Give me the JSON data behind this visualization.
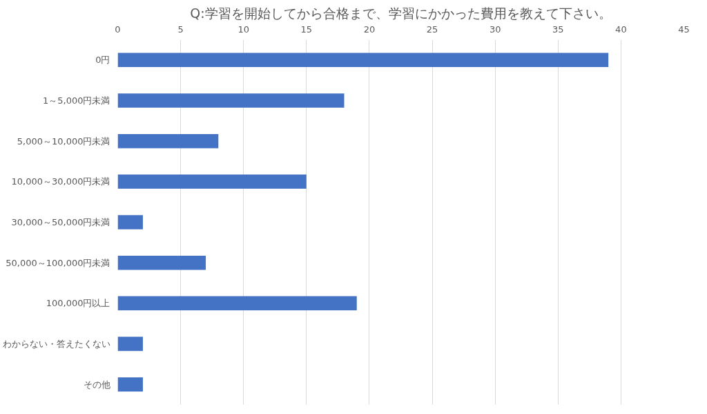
{
  "chart_data": {
    "type": "bar",
    "orientation": "horizontal",
    "title": "Q:学習を開始してから合格まで、学習にかかった費用を教えて下さい。",
    "categories": [
      "0円",
      "1～5,000円未満",
      "5,000～10,000円未満",
      "10,000～30,000円未満",
      "30,000～50,000円未満",
      "50,000～100,000円未満",
      "100,000円以上",
      "わからない・答えたくない",
      "その他"
    ],
    "values": [
      39,
      18,
      8,
      15,
      2,
      7,
      19,
      2,
      2
    ],
    "color": "#4472c4",
    "xlim": [
      0,
      45
    ],
    "xticks": [
      0,
      5,
      10,
      15,
      20,
      25,
      30,
      35,
      40,
      45
    ],
    "grid": "x"
  }
}
